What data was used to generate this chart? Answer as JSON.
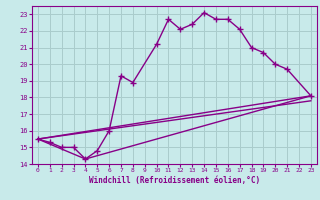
{
  "background_color": "#c8eaea",
  "grid_color": "#aacccc",
  "line_color": "#880088",
  "xlim": [
    -0.5,
    23.5
  ],
  "ylim": [
    14,
    23.5
  ],
  "xlabel": "Windchill (Refroidissement éolien,°C)",
  "xticks": [
    0,
    1,
    2,
    3,
    4,
    5,
    6,
    7,
    8,
    9,
    10,
    11,
    12,
    13,
    14,
    15,
    16,
    17,
    18,
    19,
    20,
    21,
    22,
    23
  ],
  "yticks": [
    14,
    15,
    16,
    17,
    18,
    19,
    20,
    21,
    22,
    23
  ],
  "series1_x": [
    0,
    1,
    2,
    3,
    4,
    5,
    6,
    7,
    8,
    10,
    11,
    12,
    13,
    14,
    15,
    16,
    17,
    18,
    19,
    20,
    21,
    23
  ],
  "series1_y": [
    15.5,
    15.3,
    15.0,
    15.0,
    14.3,
    14.8,
    16.0,
    19.3,
    18.9,
    21.2,
    22.7,
    22.1,
    22.4,
    23.1,
    22.7,
    22.7,
    22.1,
    21.0,
    20.7,
    20.0,
    19.7,
    18.1
  ],
  "line1_x": [
    0,
    23
  ],
  "line1_y": [
    15.5,
    18.1
  ],
  "line2_x": [
    0,
    4,
    23
  ],
  "line2_y": [
    15.5,
    14.3,
    18.1
  ],
  "line3_x": [
    0,
    23
  ],
  "line3_y": [
    15.5,
    17.8
  ]
}
